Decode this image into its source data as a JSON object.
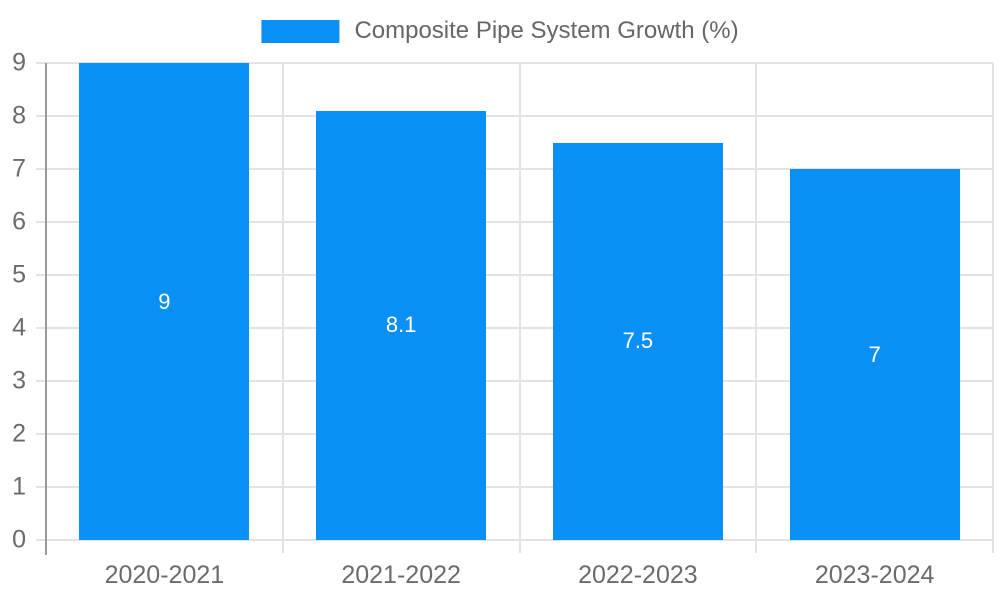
{
  "chart_data": {
    "type": "bar",
    "title": "Composite Pipe System Growth (%)",
    "categories": [
      "2020-2021",
      "2021-2022",
      "2022-2023",
      "2023-2024"
    ],
    "values": [
      9,
      8.1,
      7.5,
      7
    ],
    "value_labels": [
      "9",
      "8.1",
      "7.5",
      "7"
    ],
    "xlabel": "",
    "ylabel": "",
    "ylim": [
      0,
      9
    ],
    "yticks": [
      0,
      1,
      2,
      3,
      4,
      5,
      6,
      7,
      8,
      9
    ],
    "grid": true,
    "legend_position": "top-center",
    "bar_color": "#0a90f4",
    "bar_label_color": "#ffffff"
  },
  "colors": {
    "gridline": "#e3e3e3",
    "axis_line": "#9a9a9a",
    "tick_text": "#6b6b6b",
    "legend_text": "#666666",
    "background": "#ffffff"
  }
}
